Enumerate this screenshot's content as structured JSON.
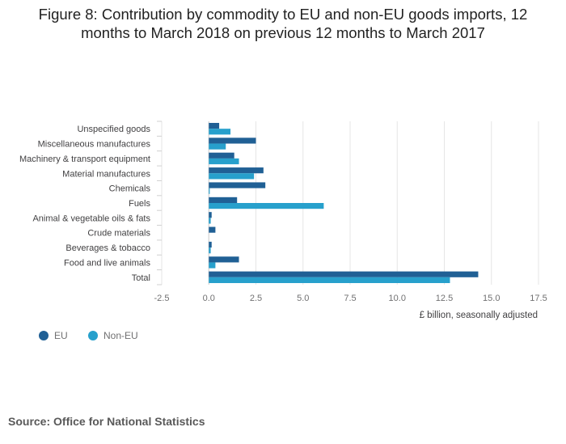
{
  "title": {
    "line1": "Figure 8: Contribution by commodity to EU and non-EU goods imports, 12",
    "line2": "months to March 2018 on previous 12 months to March 2017"
  },
  "source": "Source: Office for National Statistics",
  "legend": [
    {
      "name": "EU",
      "color": "#206095"
    },
    {
      "name": "Non-EU",
      "color": "#27a0cc"
    }
  ],
  "chart_data": {
    "type": "bar",
    "orientation": "horizontal",
    "title": "Figure 8: Contribution by commodity to EU and non-EU goods imports, 12 months to March 2018 on previous 12 months to March 2017",
    "xlabel": "£ billion, seasonally adjusted",
    "ylabel": "",
    "xlim": [
      -2.5,
      17.5
    ],
    "xticks": [
      -2.5,
      0,
      2.5,
      5,
      7.5,
      10,
      12.5,
      15,
      17.5
    ],
    "xtick_labels": [
      "-2.5",
      "0.0",
      "2.5",
      "5.0",
      "7.5",
      "10.0",
      "12.5",
      "15.0",
      "17.5"
    ],
    "grid": true,
    "legend_position": "bottom-left",
    "categories": [
      "Unspecified goods",
      "Miscellaneous manufactures",
      "Machinery & transport equipment",
      "Material manufactures",
      "Chemicals",
      "Fuels",
      "Animal & vegetable oils & fats",
      "Crude materials",
      "Beverages & tobacco",
      "Food and live animals",
      "Total"
    ],
    "series": [
      {
        "name": "EU",
        "color": "#206095",
        "values": [
          0.55,
          2.5,
          1.35,
          2.9,
          3.0,
          1.5,
          0.15,
          0.35,
          0.15,
          1.6,
          14.3
        ]
      },
      {
        "name": "Non-EU",
        "color": "#27a0cc",
        "values": [
          1.15,
          0.9,
          1.6,
          2.4,
          0.05,
          6.1,
          0.1,
          0.0,
          0.1,
          0.35,
          12.8
        ]
      }
    ]
  }
}
